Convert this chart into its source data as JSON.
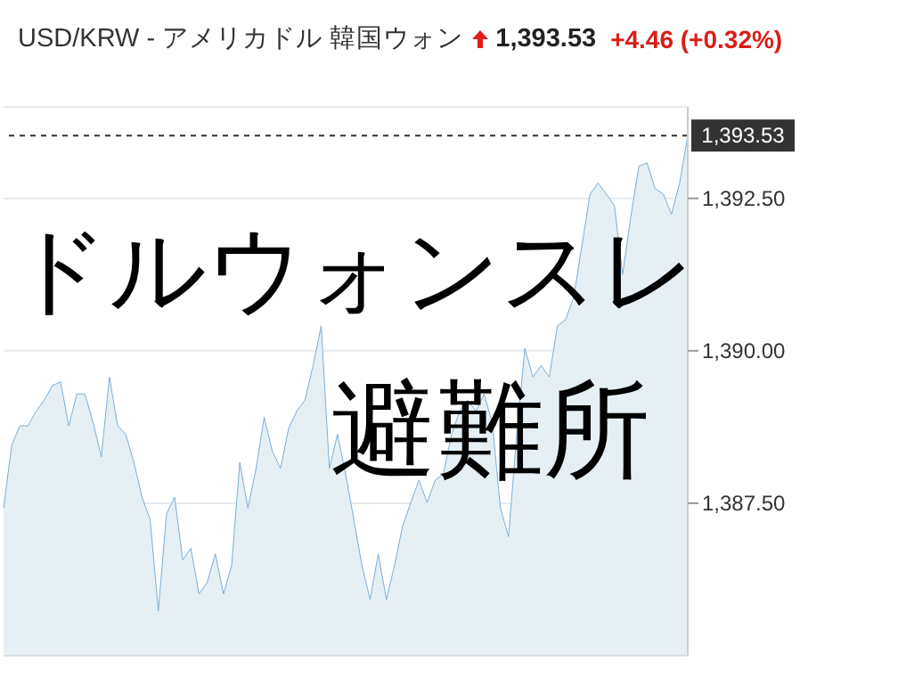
{
  "chart_data": {
    "type": "area",
    "title": "USD/KRW - アメリカドル 韓国ウォン",
    "annotations": [
      "1,393.53",
      "+4.46 (+0.32%)",
      "ドルウォンスレ",
      "避難所"
    ],
    "categories": [
      null,
      null,
      null,
      null,
      null,
      null,
      null,
      null,
      null,
      null,
      null,
      null,
      null,
      null,
      null,
      null,
      null,
      null,
      null,
      null,
      null,
      null,
      null,
      null,
      null,
      null,
      null,
      null,
      null,
      null,
      null,
      null,
      null,
      null,
      null,
      null,
      null,
      null,
      null,
      null,
      null,
      null,
      null,
      null,
      null,
      null,
      null,
      null,
      null,
      null,
      null,
      null,
      null,
      null,
      null,
      null,
      null,
      null,
      null,
      null,
      null,
      null,
      null,
      null,
      null,
      null,
      null,
      null,
      null,
      null,
      null,
      null,
      null,
      null,
      null,
      null,
      null,
      null,
      null,
      null,
      null,
      null,
      null,
      null,
      null
    ],
    "series": [
      {
        "color": "#7aaed6",
        "values": [
          1387.42,
          1388.45,
          1388.77,
          1388.77,
          1389.01,
          1389.19,
          1389.43,
          1389.49,
          1388.77,
          1389.29,
          1389.29,
          1388.82,
          1388.26,
          1389.57,
          1388.77,
          1388.63,
          1388.17,
          1387.6,
          1387.23,
          1385.73,
          1387.32,
          1387.6,
          1386.57,
          1386.76,
          1386.01,
          1386.2,
          1386.67,
          1386.01,
          1386.48,
          1388.17,
          1387.42,
          1388.07,
          1388.91,
          1388.35,
          1388.07,
          1388.73,
          1389.01,
          1389.19,
          1389.76,
          1390.41,
          1388.07,
          1388.63,
          1387.98,
          1387.23,
          1386.48,
          1385.92,
          1386.67,
          1385.92,
          1386.48,
          1387.13,
          1387.51,
          1387.88,
          1387.51,
          1387.88,
          1387.98,
          1388.63,
          1389.01,
          1389.19,
          1389.01,
          1389.29,
          1388.82,
          1387.42,
          1386.95,
          1388.63,
          1390.04,
          1389.57,
          1389.76,
          1389.57,
          1390.41,
          1390.51,
          1390.88,
          1391.72,
          1392.57,
          1392.75,
          1392.57,
          1392.38,
          1391.25,
          1392.19,
          1393.03,
          1393.08,
          1392.66,
          1392.57,
          1392.24,
          1392.75,
          1393.53
        ]
      }
    ],
    "ylim": [
      1385,
      1394
    ],
    "yticks": [
      {
        "value": 1387.5,
        "label": "1,387.50"
      },
      {
        "value": 1390,
        "label": "1,390.00"
      },
      {
        "value": 1392.5,
        "label": "1,392.50"
      }
    ],
    "grid": "y",
    "ref_lines": [
      {
        "axis": "y",
        "value": 1393.53,
        "label": "1,393.53",
        "color": "#333333",
        "line_style": "dashed"
      }
    ]
  }
}
